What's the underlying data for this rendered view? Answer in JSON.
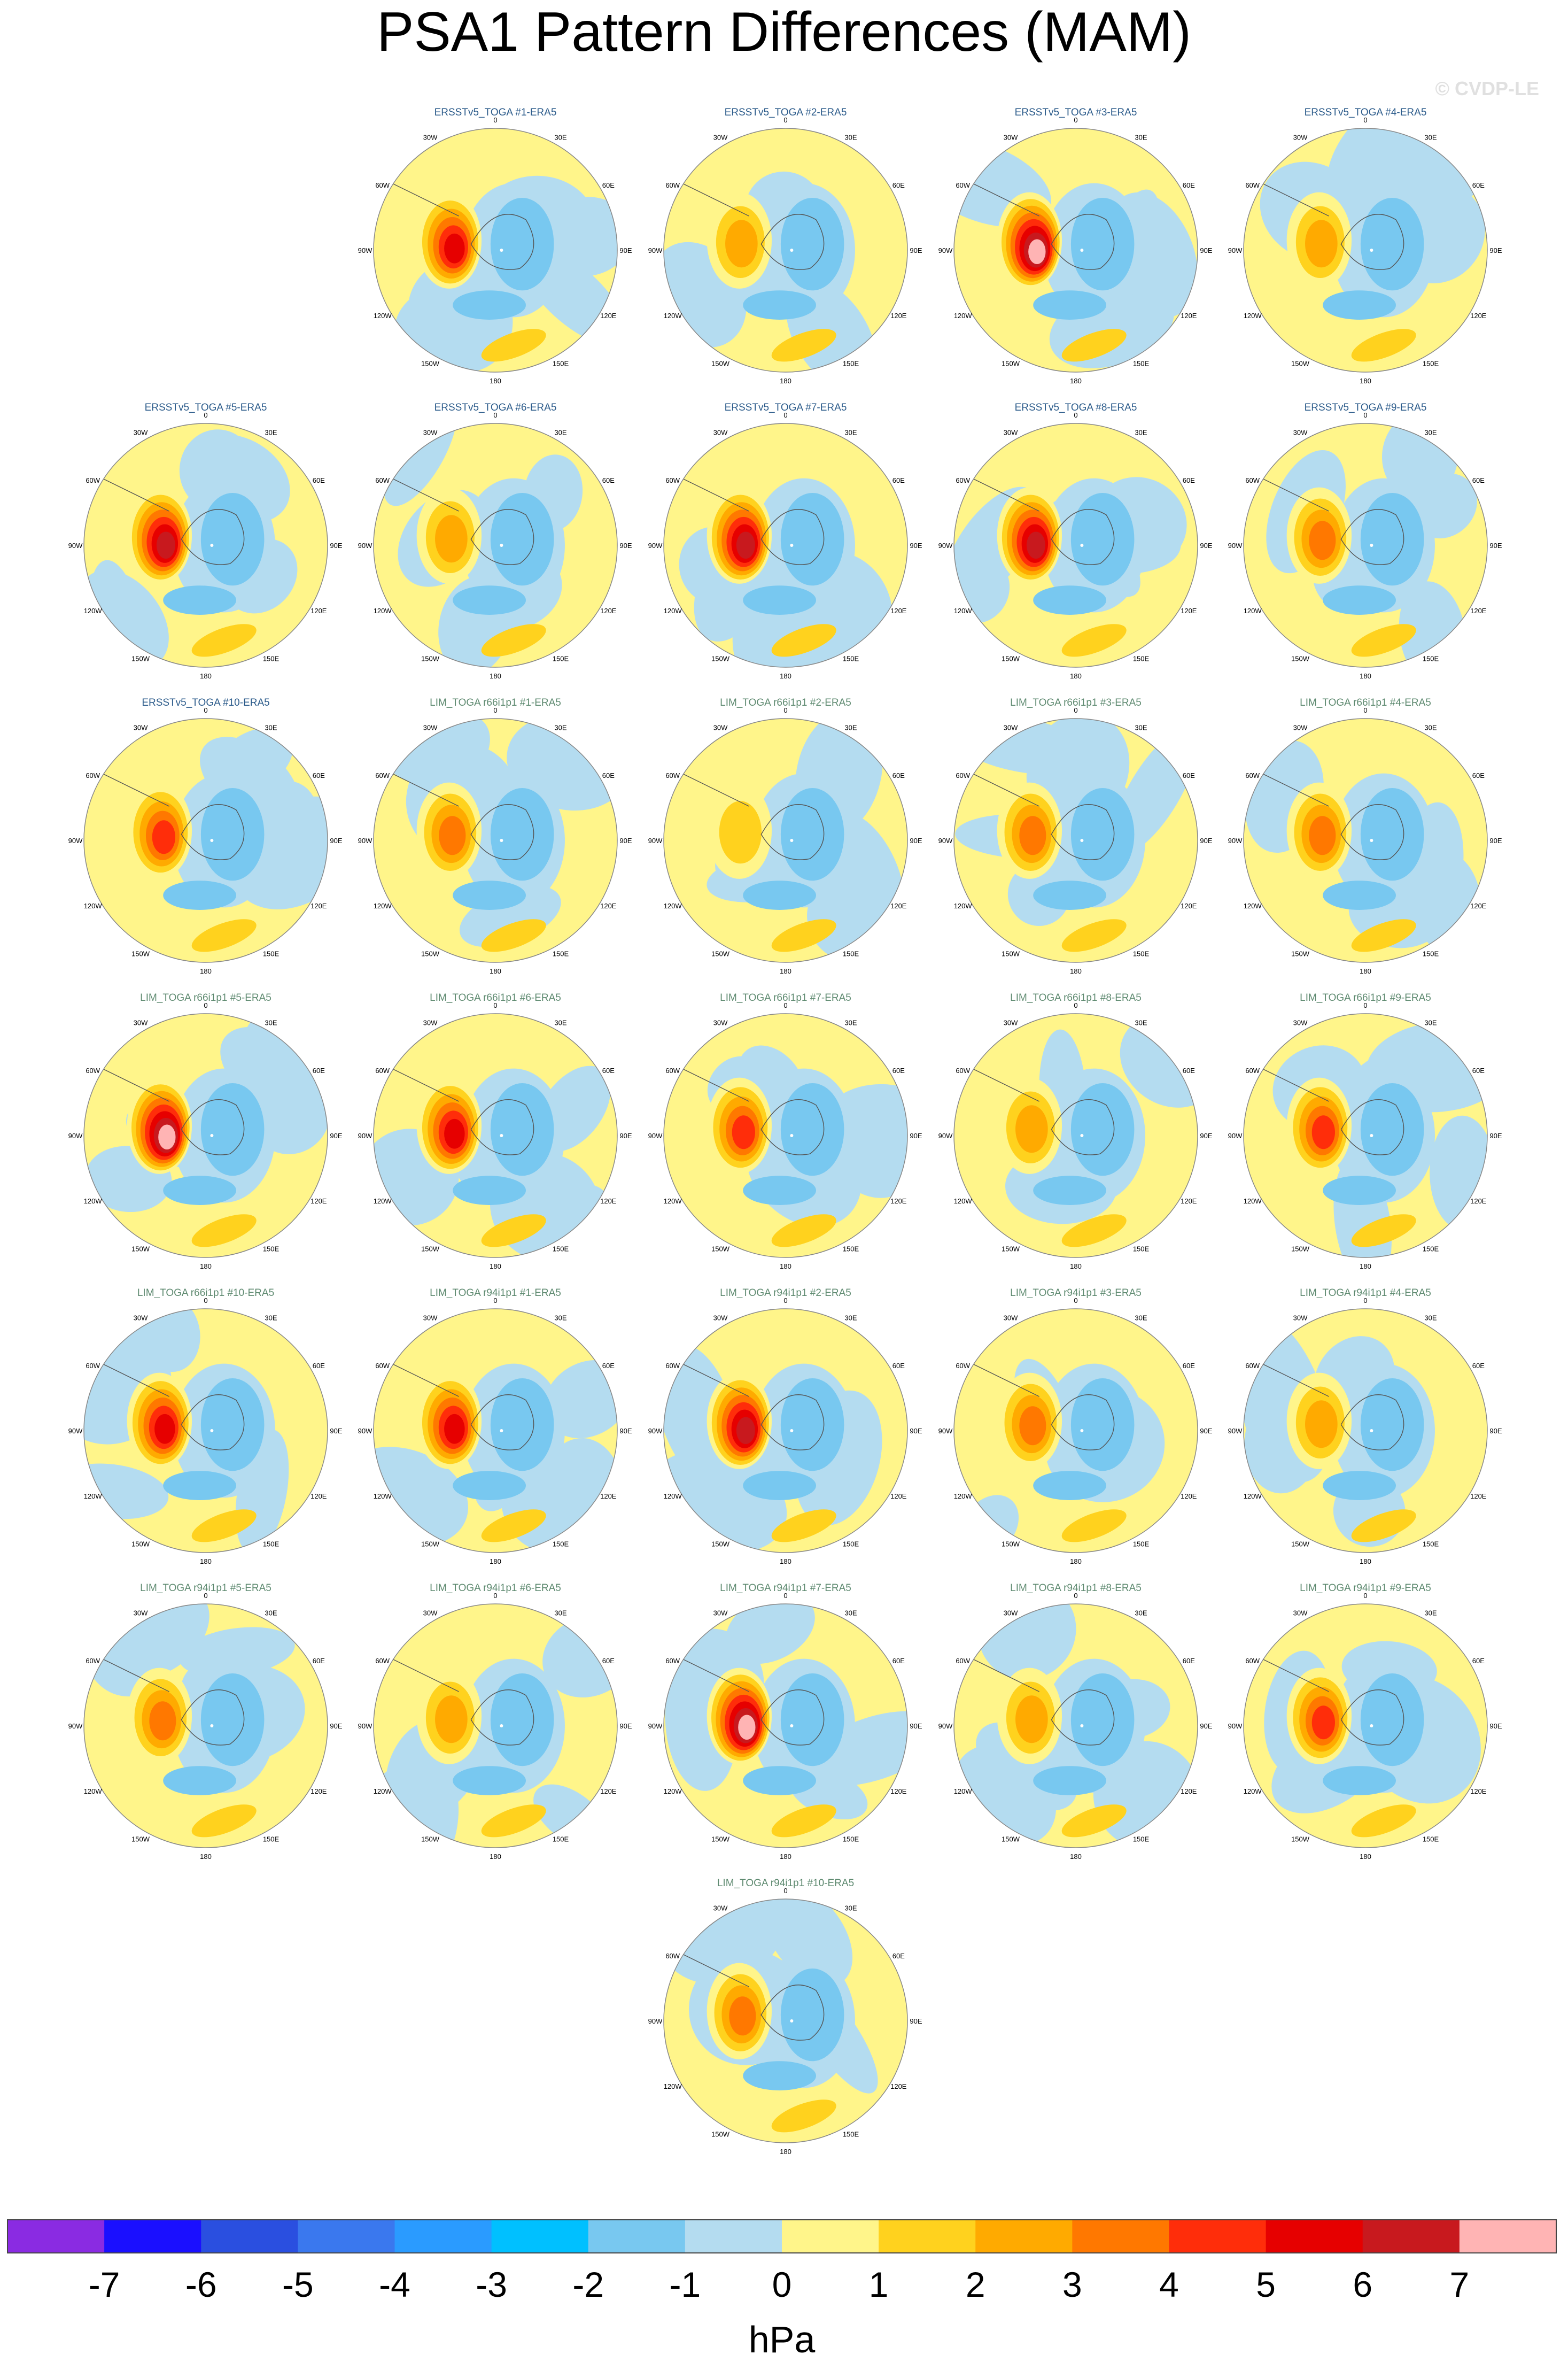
{
  "title": "PSA1 Pattern Differences (MAM)",
  "credit": "© CVDP-LE",
  "colorbar": {
    "unit": "hPa",
    "ticks": [
      "-7",
      "-6",
      "-5",
      "-4",
      "-3",
      "-2",
      "-1",
      "0",
      "1",
      "2",
      "3",
      "4",
      "5",
      "6",
      "7"
    ],
    "colors": [
      "#8a2be2",
      "#1a0fff",
      "#2a4fe0",
      "#3a78ee",
      "#2a9bff",
      "#00c0ff",
      "#78c8f0",
      "#b4dcf0",
      "#fff58a",
      "#ffd21e",
      "#ffaa00",
      "#ff7800",
      "#ff2d0a",
      "#e60000",
      "#c8191e",
      "#ffb4b4"
    ]
  },
  "lon_labels": [
    "0",
    "30E",
    "60E",
    "90E",
    "120E",
    "150E",
    "180",
    "150W",
    "120W",
    "90W",
    "60W",
    "30W"
  ],
  "chart_data": {
    "type": "heatmap",
    "description_units": "hPa",
    "colorbar_range": [
      -7,
      7
    ],
    "projection": "south-polar stereographic",
    "panels": [
      {
        "title": "ERSSTv5_TOGA #1-ERA5",
        "source": "ERSSTv5",
        "max": 5
      },
      {
        "title": "ERSSTv5_TOGA #2-ERA5",
        "source": "ERSSTv5",
        "max": 2
      },
      {
        "title": "ERSSTv5_TOGA #3-ERA5",
        "source": "ERSSTv5",
        "max": 7
      },
      {
        "title": "ERSSTv5_TOGA #4-ERA5",
        "source": "ERSSTv5",
        "max": 2
      },
      {
        "title": "ERSSTv5_TOGA #5-ERA5",
        "source": "ERSSTv5",
        "max": 6
      },
      {
        "title": "ERSSTv5_TOGA #6-ERA5",
        "source": "ERSSTv5",
        "max": 2
      },
      {
        "title": "ERSSTv5_TOGA #7-ERA5",
        "source": "ERSSTv5",
        "max": 6
      },
      {
        "title": "ERSSTv5_TOGA #8-ERA5",
        "source": "ERSSTv5",
        "max": 6
      },
      {
        "title": "ERSSTv5_TOGA #9-ERA5",
        "source": "ERSSTv5",
        "max": 3
      },
      {
        "title": "ERSSTv5_TOGA #10-ERA5",
        "source": "ERSSTv5",
        "max": 4
      },
      {
        "title": "LIM_TOGA r66i1p1 #1-ERA5",
        "source": "LIM",
        "max": 3
      },
      {
        "title": "LIM_TOGA r66i1p1 #2-ERA5",
        "source": "LIM",
        "max": 1
      },
      {
        "title": "LIM_TOGA r66i1p1 #3-ERA5",
        "source": "LIM",
        "max": 3
      },
      {
        "title": "LIM_TOGA r66i1p1 #4-ERA5",
        "source": "LIM",
        "max": 3
      },
      {
        "title": "LIM_TOGA r66i1p1 #5-ERA5",
        "source": "LIM",
        "max": 7
      },
      {
        "title": "LIM_TOGA r66i1p1 #6-ERA5",
        "source": "LIM",
        "max": 5
      },
      {
        "title": "LIM_TOGA r66i1p1 #7-ERA5",
        "source": "LIM",
        "max": 4
      },
      {
        "title": "LIM_TOGA r66i1p1 #8-ERA5",
        "source": "LIM",
        "max": 2
      },
      {
        "title": "LIM_TOGA r66i1p1 #9-ERA5",
        "source": "LIM",
        "max": 4
      },
      {
        "title": "LIM_TOGA r66i1p1 #10-ERA5",
        "source": "LIM",
        "max": 5
      },
      {
        "title": "LIM_TOGA r94i1p1 #1-ERA5",
        "source": "LIM",
        "max": 5
      },
      {
        "title": "LIM_TOGA r94i1p1 #2-ERA5",
        "source": "LIM",
        "max": 6
      },
      {
        "title": "LIM_TOGA r94i1p1 #3-ERA5",
        "source": "LIM",
        "max": 3
      },
      {
        "title": "LIM_TOGA r94i1p1 #4-ERA5",
        "source": "LIM",
        "max": 2
      },
      {
        "title": "LIM_TOGA r94i1p1 #5-ERA5",
        "source": "LIM",
        "max": 3
      },
      {
        "title": "LIM_TOGA r94i1p1 #6-ERA5",
        "source": "LIM",
        "max": 2
      },
      {
        "title": "LIM_TOGA r94i1p1 #7-ERA5",
        "source": "LIM",
        "max": 7
      },
      {
        "title": "LIM_TOGA r94i1p1 #8-ERA5",
        "source": "LIM",
        "max": 2
      },
      {
        "title": "LIM_TOGA r94i1p1 #9-ERA5",
        "source": "LIM",
        "max": 4
      },
      {
        "title": "LIM_TOGA r94i1p1 #10-ERA5",
        "source": "LIM",
        "max": 3
      }
    ]
  }
}
